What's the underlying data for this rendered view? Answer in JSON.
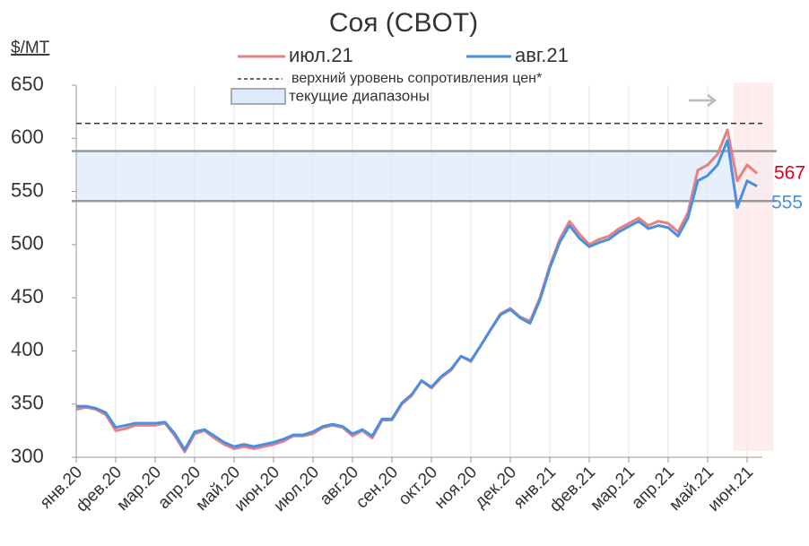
{
  "chart_data": {
    "type": "line",
    "title": "Соя (CBOT)",
    "y_label": "$/MT",
    "categories": [
      "янв.20",
      null,
      null,
      null,
      "фев.20",
      null,
      null,
      null,
      "мар.20",
      null,
      null,
      null,
      "апр.20",
      null,
      null,
      null,
      "май.20",
      null,
      null,
      null,
      "июн.20",
      null,
      null,
      null,
      "июл.20",
      null,
      null,
      null,
      "авг.20",
      null,
      null,
      null,
      "сен.20",
      null,
      null,
      null,
      "окт.20",
      null,
      null,
      null,
      "ноя.20",
      null,
      null,
      null,
      "дек.20",
      null,
      null,
      null,
      "янв.21",
      null,
      null,
      null,
      "фев.21",
      null,
      null,
      null,
      "мар.21",
      null,
      null,
      null,
      "апр.21",
      null,
      null,
      null,
      "май.21",
      null,
      null,
      null,
      "июн.21",
      null
    ],
    "series": [
      {
        "name": "июл.21",
        "color": "#e88080",
        "values": [
          345,
          347,
          345,
          340,
          325,
          327,
          330,
          330,
          330,
          332,
          320,
          305,
          322,
          325,
          318,
          312,
          308,
          310,
          308,
          310,
          312,
          315,
          320,
          320,
          322,
          328,
          330,
          328,
          320,
          325,
          318,
          335,
          335,
          350,
          358,
          372,
          365,
          375,
          382,
          395,
          390,
          405,
          420,
          435,
          440,
          432,
          428,
          450,
          480,
          505,
          522,
          510,
          500,
          505,
          508,
          515,
          520,
          525,
          518,
          522,
          520,
          512,
          530,
          570,
          575,
          585,
          608,
          560,
          575,
          567
        ]
      },
      {
        "name": "авг.21",
        "color": "#4a8fe0",
        "values": [
          348,
          348,
          346,
          342,
          328,
          330,
          332,
          332,
          332,
          333,
          322,
          307,
          324,
          326,
          320,
          314,
          310,
          312,
          310,
          312,
          314,
          317,
          321,
          321,
          324,
          329,
          331,
          329,
          322,
          326,
          320,
          336,
          336,
          351,
          359,
          372,
          366,
          376,
          383,
          395,
          391,
          405,
          420,
          434,
          439,
          431,
          426,
          448,
          478,
          502,
          518,
          506,
          498,
          502,
          505,
          512,
          517,
          522,
          515,
          518,
          516,
          508,
          525,
          560,
          565,
          575,
          598,
          535,
          560,
          555
        ]
      }
    ],
    "resistance_level": {
      "name": "верхний уровень сопротивления цен*",
      "value": 614
    },
    "current_range": {
      "name": "текущие диапазоны",
      "values": [
        541,
        588
      ]
    },
    "ylim": [
      300,
      650
    ],
    "yticks": [
      300,
      350,
      400,
      450,
      500,
      550,
      600,
      650
    ],
    "grid": true
  }
}
